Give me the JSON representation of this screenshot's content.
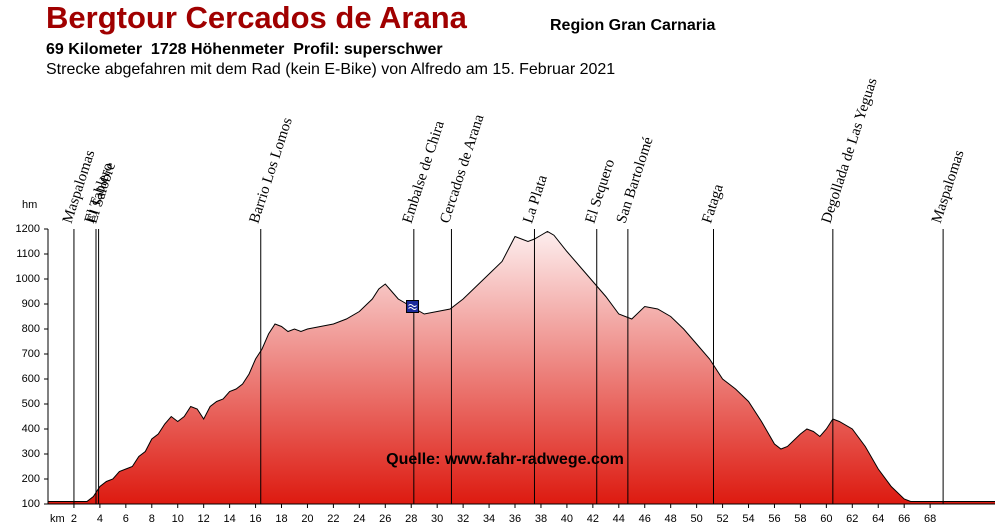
{
  "chart_data": {
    "type": "area",
    "title": "Bergtour Cercados de Arana",
    "region": "Region Gran Carnaria",
    "subtitle": "69 Kilometer  1728 Höhenmeter  Profil: superschwer",
    "description": "Strecke abgefahren mit dem Rad (kein E-Bike) von Alfredo am 15. Februar 2021",
    "source": "Quelle: www.fahr-radwege.com",
    "x_label": "km",
    "y_label": "hm",
    "x": [
      0,
      1,
      2,
      3,
      3.5,
      4,
      4.5,
      5,
      5.5,
      6,
      6.5,
      7,
      7.5,
      8,
      8.5,
      9,
      9.5,
      10,
      10.5,
      11,
      11.5,
      12,
      12.5,
      13,
      13.5,
      14,
      14.5,
      15,
      15.5,
      16,
      16.5,
      17,
      17.5,
      18,
      18.5,
      19,
      19.5,
      20,
      21,
      22,
      23,
      24,
      25,
      25.5,
      26,
      26.5,
      27,
      28,
      29,
      30,
      31,
      32,
      33,
      34,
      35,
      36,
      36.5,
      37,
      37.5,
      38,
      38.5,
      39,
      40,
      41,
      42,
      43,
      44,
      45,
      46,
      47,
      48,
      49,
      50,
      51,
      52,
      53,
      54,
      55,
      56,
      56.5,
      57,
      58,
      58.5,
      59,
      59.5,
      60,
      60.5,
      61,
      62,
      63,
      64,
      65,
      66,
      66.5,
      67,
      68,
      69,
      70,
      73
    ],
    "values": [
      110,
      110,
      110,
      110,
      130,
      170,
      190,
      200,
      230,
      240,
      250,
      290,
      310,
      360,
      380,
      420,
      450,
      430,
      450,
      490,
      480,
      440,
      490,
      510,
      520,
      550,
      560,
      580,
      620,
      680,
      720,
      780,
      820,
      810,
      790,
      800,
      790,
      800,
      810,
      820,
      840,
      870,
      920,
      960,
      980,
      950,
      920,
      890,
      860,
      870,
      880,
      920,
      970,
      1020,
      1070,
      1170,
      1160,
      1150,
      1160,
      1175,
      1190,
      1175,
      1110,
      1050,
      990,
      930,
      860,
      840,
      890,
      880,
      850,
      800,
      740,
      680,
      600,
      560,
      510,
      430,
      340,
      320,
      330,
      380,
      400,
      390,
      370,
      400,
      440,
      430,
      400,
      330,
      240,
      170,
      120,
      110,
      110,
      110,
      110,
      110,
      110
    ],
    "xlim": [
      0,
      73
    ],
    "ylim": [
      100,
      1200
    ],
    "xticks": [
      2,
      4,
      6,
      8,
      10,
      12,
      14,
      16,
      18,
      20,
      22,
      24,
      26,
      28,
      30,
      32,
      34,
      36,
      38,
      40,
      42,
      44,
      46,
      48,
      50,
      52,
      54,
      56,
      58,
      60,
      62,
      64,
      66,
      68
    ],
    "yticks": [
      100,
      200,
      300,
      400,
      500,
      600,
      700,
      800,
      900,
      1000,
      1100,
      1200
    ],
    "places": [
      {
        "name": "Maspalomas",
        "km": 2.0
      },
      {
        "name": "El Tablero",
        "km": 3.7
      },
      {
        "name": "El Salobre",
        "km": 3.9
      },
      {
        "name": "Barrio Los Lomos",
        "km": 16.4
      },
      {
        "name": "Embalse de Chira",
        "km": 28.2
      },
      {
        "name": "Cercados de Arana",
        "km": 31.1
      },
      {
        "name": "La Plata",
        "km": 37.5
      },
      {
        "name": "El Sequero",
        "km": 42.3
      },
      {
        "name": "San Bartolomé",
        "km": 44.7
      },
      {
        "name": "Fataga",
        "km": 51.3
      },
      {
        "name": "Degollada de Las Yeguas",
        "km": 60.5
      },
      {
        "name": "Maspalomas",
        "km": 69.0
      }
    ],
    "marker": {
      "x": 28.1,
      "y": 890
    },
    "color_top": "#fdeeee",
    "color_bottom": "#dd1a10"
  }
}
